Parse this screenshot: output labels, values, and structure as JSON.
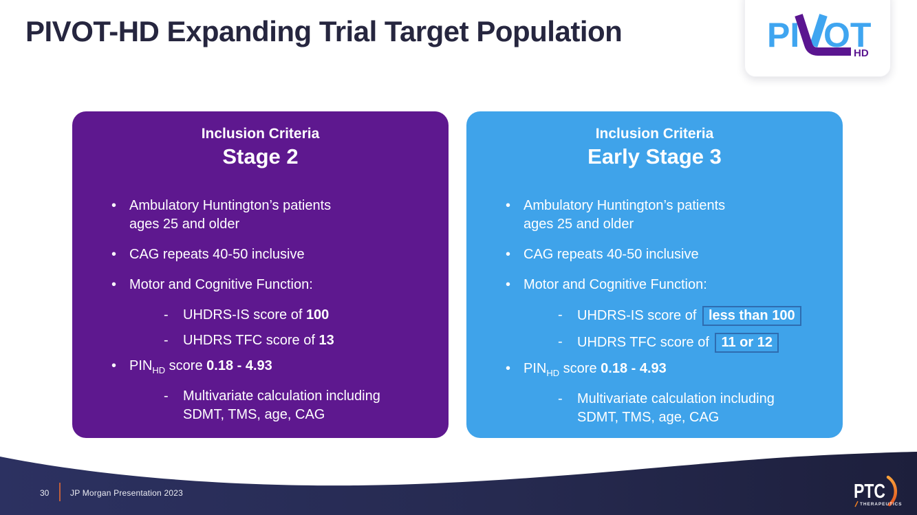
{
  "slide": {
    "title": "PIVOT-HD Expanding Trial Target Population",
    "footer": {
      "page_number": "30",
      "label": "JP Morgan Presentation 2023"
    }
  },
  "pivot_logo": {
    "part1": "PI",
    "part2": "OT",
    "subscript": "HD"
  },
  "ptc_logo": {
    "name": "PTC",
    "tagline": "THERAPEUTICS"
  },
  "colors": {
    "title_navy": "#26263F",
    "stage2_purple": "#5E188F",
    "early_stage3_blue": "#3FA3EA",
    "highlight_box_border": "#2E6CB0",
    "footer_navy_left": "#2C3161",
    "footer_navy_right": "#1D1F3C",
    "footer_separator_orange": "#C05F3C",
    "logo_blue": "#3FA5F0",
    "logo_purple": "#5A1590",
    "ptc_orange": "#F58220"
  },
  "cards": [
    {
      "header_label": "Inclusion Criteria",
      "header_title": "Stage 2",
      "accent": "#5E188F",
      "items": [
        {
          "level": 1,
          "lines": [
            [
              {
                "text": "Ambulatory Huntington’s patients"
              }
            ],
            [
              {
                "text": "ages 25 and older"
              }
            ]
          ]
        },
        {
          "level": 1,
          "lines": [
            [
              {
                "text": "CAG repeats 40-50 inclusive"
              }
            ]
          ]
        },
        {
          "level": 1,
          "lines": [
            [
              {
                "text": "Motor and Cognitive Function:"
              }
            ]
          ]
        },
        {
          "level": 2,
          "lines": [
            [
              {
                "text": "UHDRS-IS score of "
              },
              {
                "text": "100",
                "bold": true
              }
            ]
          ]
        },
        {
          "level": 2,
          "lines": [
            [
              {
                "text": "UHDRS TFC score of "
              },
              {
                "text": "13",
                "bold": true
              }
            ]
          ]
        },
        {
          "level": 1,
          "lines": [
            [
              {
                "text": "PIN"
              },
              {
                "text": "HD",
                "sub": true
              },
              {
                "text": " score "
              },
              {
                "text": "0.18 - 4.93",
                "bold": true
              }
            ]
          ]
        },
        {
          "level": 2,
          "lines": [
            [
              {
                "text": "Multivariate calculation including"
              }
            ],
            [
              {
                "text": "SDMT, TMS, age, CAG"
              }
            ]
          ]
        }
      ]
    },
    {
      "header_label": "Inclusion Criteria",
      "header_title": "Early Stage 3",
      "accent": "#3FA3EA",
      "items": [
        {
          "level": 1,
          "lines": [
            [
              {
                "text": "Ambulatory Huntington’s patients"
              }
            ],
            [
              {
                "text": "ages 25 and older"
              }
            ]
          ]
        },
        {
          "level": 1,
          "lines": [
            [
              {
                "text": "CAG repeats 40-50 inclusive"
              }
            ]
          ]
        },
        {
          "level": 1,
          "lines": [
            [
              {
                "text": "Motor and Cognitive Function:"
              }
            ]
          ]
        },
        {
          "level": 2,
          "lines": [
            [
              {
                "text": "UHDRS-IS score of "
              },
              {
                "text": "less than 100",
                "bold": true,
                "boxed": true
              }
            ]
          ]
        },
        {
          "level": 2,
          "lines": [
            [
              {
                "text": "UHDRS TFC score of "
              },
              {
                "text": "11 or 12",
                "bold": true,
                "boxed": true
              }
            ]
          ]
        },
        {
          "level": 1,
          "lines": [
            [
              {
                "text": "PIN"
              },
              {
                "text": "HD",
                "sub": true
              },
              {
                "text": " score "
              },
              {
                "text": "0.18 - 4.93",
                "bold": true
              }
            ]
          ]
        },
        {
          "level": 2,
          "lines": [
            [
              {
                "text": "Multivariate calculation including"
              }
            ],
            [
              {
                "text": "SDMT, TMS, age, CAG"
              }
            ]
          ]
        }
      ]
    }
  ]
}
